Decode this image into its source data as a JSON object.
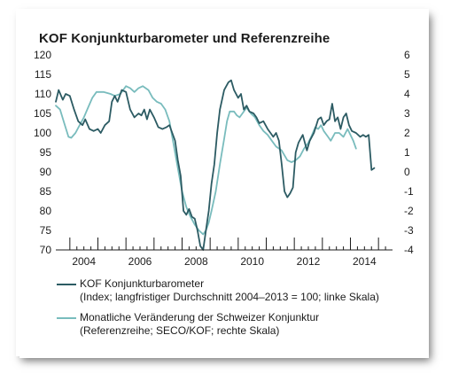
{
  "chart_data": {
    "type": "line",
    "title": "KOF Konjunkturbarometer und Referenzreihe",
    "left_axis": {
      "ticks": [
        120,
        115,
        110,
        105,
        100,
        95,
        90,
        85,
        80,
        75,
        70
      ],
      "range": [
        70,
        120
      ]
    },
    "right_axis": {
      "ticks": [
        "6",
        "5",
        "4",
        "3",
        "2",
        "1",
        "0",
        "-1",
        "-2",
        "-3",
        "-4"
      ],
      "range": [
        -4,
        6
      ]
    },
    "x_axis": {
      "labels": [
        "2004",
        "2006",
        "2008",
        "2010",
        "2012",
        "2014"
      ],
      "label_years": [
        2004,
        2006,
        2008,
        2010,
        2012,
        2014
      ],
      "range": [
        2003.5,
        2015.5
      ]
    },
    "grid": false,
    "series": [
      {
        "name": "KOF Konjunkturbarometer",
        "name_line2": "(Index; langfristiger Durchschnitt 2004–2013 = 100; linke Skala)",
        "color": "#2c5b63",
        "axis": "left",
        "points": [
          [
            2003.5,
            108
          ],
          [
            2003.6,
            111
          ],
          [
            2003.75,
            108.5
          ],
          [
            2003.85,
            110
          ],
          [
            2004.0,
            109.5
          ],
          [
            2004.15,
            106
          ],
          [
            2004.3,
            103
          ],
          [
            2004.45,
            102
          ],
          [
            2004.55,
            103.5
          ],
          [
            2004.7,
            101
          ],
          [
            2004.85,
            100.5
          ],
          [
            2005.0,
            101
          ],
          [
            2005.1,
            100
          ],
          [
            2005.25,
            102
          ],
          [
            2005.4,
            103
          ],
          [
            2005.5,
            108
          ],
          [
            2005.6,
            109.5
          ],
          [
            2005.7,
            108
          ],
          [
            2005.85,
            111
          ],
          [
            2006.0,
            110.5
          ],
          [
            2006.15,
            106
          ],
          [
            2006.3,
            104
          ],
          [
            2006.45,
            105
          ],
          [
            2006.55,
            104.5
          ],
          [
            2006.65,
            106
          ],
          [
            2006.75,
            103.5
          ],
          [
            2006.85,
            106
          ],
          [
            2007.0,
            104
          ],
          [
            2007.15,
            101.5
          ],
          [
            2007.3,
            101
          ],
          [
            2007.45,
            101.5
          ],
          [
            2007.55,
            102
          ],
          [
            2007.65,
            100
          ],
          [
            2007.75,
            98
          ],
          [
            2007.85,
            93
          ],
          [
            2007.95,
            89
          ],
          [
            2008.05,
            80
          ],
          [
            2008.15,
            79
          ],
          [
            2008.25,
            80.5
          ],
          [
            2008.35,
            78.5
          ],
          [
            2008.45,
            78
          ],
          [
            2008.55,
            75
          ],
          [
            2008.65,
            71
          ],
          [
            2008.75,
            70
          ],
          [
            2008.85,
            75
          ],
          [
            2008.95,
            80
          ],
          [
            2009.05,
            87
          ],
          [
            2009.15,
            92
          ],
          [
            2009.25,
            100
          ],
          [
            2009.35,
            106
          ],
          [
            2009.5,
            111
          ],
          [
            2009.65,
            113
          ],
          [
            2009.75,
            113.5
          ],
          [
            2009.85,
            111
          ],
          [
            2010.0,
            109
          ],
          [
            2010.1,
            110
          ],
          [
            2010.2,
            106
          ],
          [
            2010.3,
            107
          ],
          [
            2010.4,
            105.5
          ],
          [
            2010.55,
            105
          ],
          [
            2010.65,
            104
          ],
          [
            2010.75,
            102.5
          ],
          [
            2010.9,
            103
          ],
          [
            2011.05,
            101
          ],
          [
            2011.15,
            100
          ],
          [
            2011.25,
            99
          ],
          [
            2011.35,
            100
          ],
          [
            2011.45,
            98
          ],
          [
            2011.55,
            92
          ],
          [
            2011.65,
            85
          ],
          [
            2011.75,
            83.5
          ],
          [
            2011.85,
            84.5
          ],
          [
            2011.95,
            86
          ],
          [
            2012.05,
            95
          ],
          [
            2012.15,
            97.5
          ],
          [
            2012.3,
            99.5
          ],
          [
            2012.45,
            95.5
          ],
          [
            2012.55,
            98
          ],
          [
            2012.7,
            100
          ],
          [
            2012.85,
            103.5
          ],
          [
            2012.95,
            104
          ],
          [
            2013.05,
            102
          ],
          [
            2013.15,
            103
          ],
          [
            2013.25,
            103.5
          ],
          [
            2013.35,
            107.5
          ],
          [
            2013.45,
            103
          ],
          [
            2013.55,
            104
          ],
          [
            2013.65,
            101
          ],
          [
            2013.75,
            104
          ],
          [
            2013.85,
            105
          ],
          [
            2013.95,
            102
          ],
          [
            2014.05,
            100.5
          ],
          [
            2014.2,
            100
          ],
          [
            2014.35,
            99
          ],
          [
            2014.45,
            99.5
          ],
          [
            2014.55,
            99
          ],
          [
            2014.65,
            99.5
          ],
          [
            2014.75,
            90.5
          ],
          [
            2014.85,
            91
          ]
        ]
      },
      {
        "name": "Monatliche Veränderung der Schweizer Konjunktur",
        "name_line2": "(Referenzreihe; SECO/KOF; rechte Skala)",
        "color": "#79bcbd",
        "axis": "right",
        "points": [
          [
            2003.5,
            3.4
          ],
          [
            2003.65,
            3.2
          ],
          [
            2003.8,
            2.5
          ],
          [
            2003.95,
            1.8
          ],
          [
            2004.05,
            1.75
          ],
          [
            2004.2,
            2.0
          ],
          [
            2004.35,
            2.4
          ],
          [
            2004.5,
            2.8
          ],
          [
            2004.65,
            3.3
          ],
          [
            2004.8,
            3.8
          ],
          [
            2004.95,
            4.1
          ],
          [
            2005.2,
            4.1
          ],
          [
            2005.45,
            4.0
          ],
          [
            2005.6,
            3.9
          ],
          [
            2005.8,
            4.0
          ],
          [
            2006.0,
            4.4
          ],
          [
            2006.15,
            4.3
          ],
          [
            2006.3,
            4.1
          ],
          [
            2006.45,
            4.3
          ],
          [
            2006.6,
            4.4
          ],
          [
            2006.8,
            4.2
          ],
          [
            2006.95,
            3.8
          ],
          [
            2007.1,
            3.6
          ],
          [
            2007.25,
            3.5
          ],
          [
            2007.4,
            3.2
          ],
          [
            2007.55,
            2.6
          ],
          [
            2007.7,
            1.4
          ],
          [
            2007.85,
            0.2
          ],
          [
            2008.0,
            -1.0
          ],
          [
            2008.15,
            -1.8
          ],
          [
            2008.3,
            -2.3
          ],
          [
            2008.45,
            -2.7
          ],
          [
            2008.6,
            -3.0
          ],
          [
            2008.75,
            -3.2
          ],
          [
            2008.85,
            -3.0
          ],
          [
            2008.95,
            -2.6
          ],
          [
            2009.05,
            -2.0
          ],
          [
            2009.2,
            -1.0
          ],
          [
            2009.35,
            0.4
          ],
          [
            2009.5,
            1.7
          ],
          [
            2009.6,
            2.6
          ],
          [
            2009.7,
            3.1
          ],
          [
            2009.85,
            3.1
          ],
          [
            2009.95,
            2.9
          ],
          [
            2010.05,
            2.8
          ],
          [
            2010.15,
            3.0
          ],
          [
            2010.3,
            3.3
          ],
          [
            2010.45,
            3.0
          ],
          [
            2010.6,
            2.8
          ],
          [
            2010.75,
            2.4
          ],
          [
            2010.9,
            2.1
          ],
          [
            2011.05,
            1.9
          ],
          [
            2011.2,
            1.6
          ],
          [
            2011.35,
            1.3
          ],
          [
            2011.55,
            1.1
          ],
          [
            2011.75,
            0.6
          ],
          [
            2011.9,
            0.5
          ],
          [
            2012.05,
            0.6
          ],
          [
            2012.2,
            0.8
          ],
          [
            2012.35,
            1.2
          ],
          [
            2012.5,
            1.5
          ],
          [
            2012.6,
            1.8
          ],
          [
            2012.75,
            2.3
          ],
          [
            2012.85,
            2.2
          ],
          [
            2012.95,
            2.4
          ],
          [
            2013.05,
            2.1
          ],
          [
            2013.2,
            1.8
          ],
          [
            2013.3,
            1.6
          ],
          [
            2013.45,
            2.0
          ],
          [
            2013.6,
            2.0
          ],
          [
            2013.75,
            1.8
          ],
          [
            2013.9,
            2.2
          ],
          [
            2014.0,
            1.9
          ],
          [
            2014.1,
            1.6
          ],
          [
            2014.2,
            1.2
          ]
        ]
      }
    ]
  }
}
